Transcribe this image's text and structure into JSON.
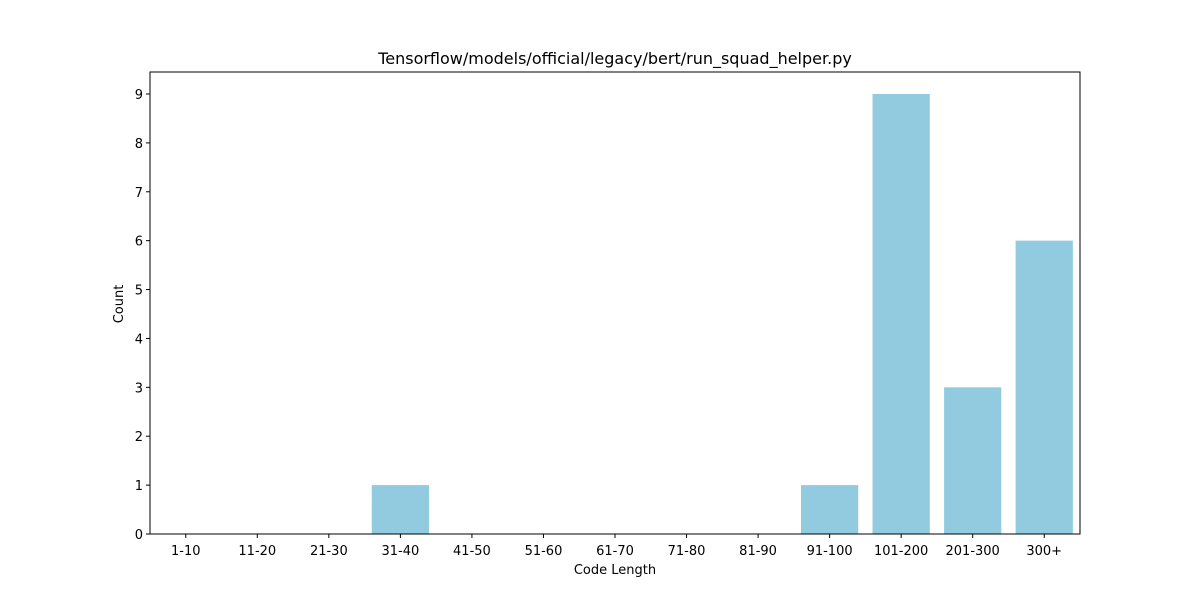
{
  "chart_data": {
    "type": "bar",
    "title": "Tensorflow/models/official/legacy/bert/run_squad_helper.py",
    "xlabel": "Code Length",
    "ylabel": "Count",
    "categories": [
      "1-10",
      "11-20",
      "21-30",
      "31-40",
      "41-50",
      "51-60",
      "61-70",
      "71-80",
      "81-90",
      "91-100",
      "101-200",
      "201-300",
      "300+"
    ],
    "values": [
      0,
      0,
      0,
      1,
      0,
      0,
      0,
      0,
      0,
      1,
      9,
      3,
      6
    ],
    "yticks": [
      "0",
      "1",
      "2",
      "3",
      "4",
      "5",
      "6",
      "7",
      "8",
      "9"
    ],
    "ylim": [
      0,
      9.45
    ],
    "grid": false,
    "colors": {
      "bar": "#92cadf",
      "axis": "#000000"
    }
  }
}
